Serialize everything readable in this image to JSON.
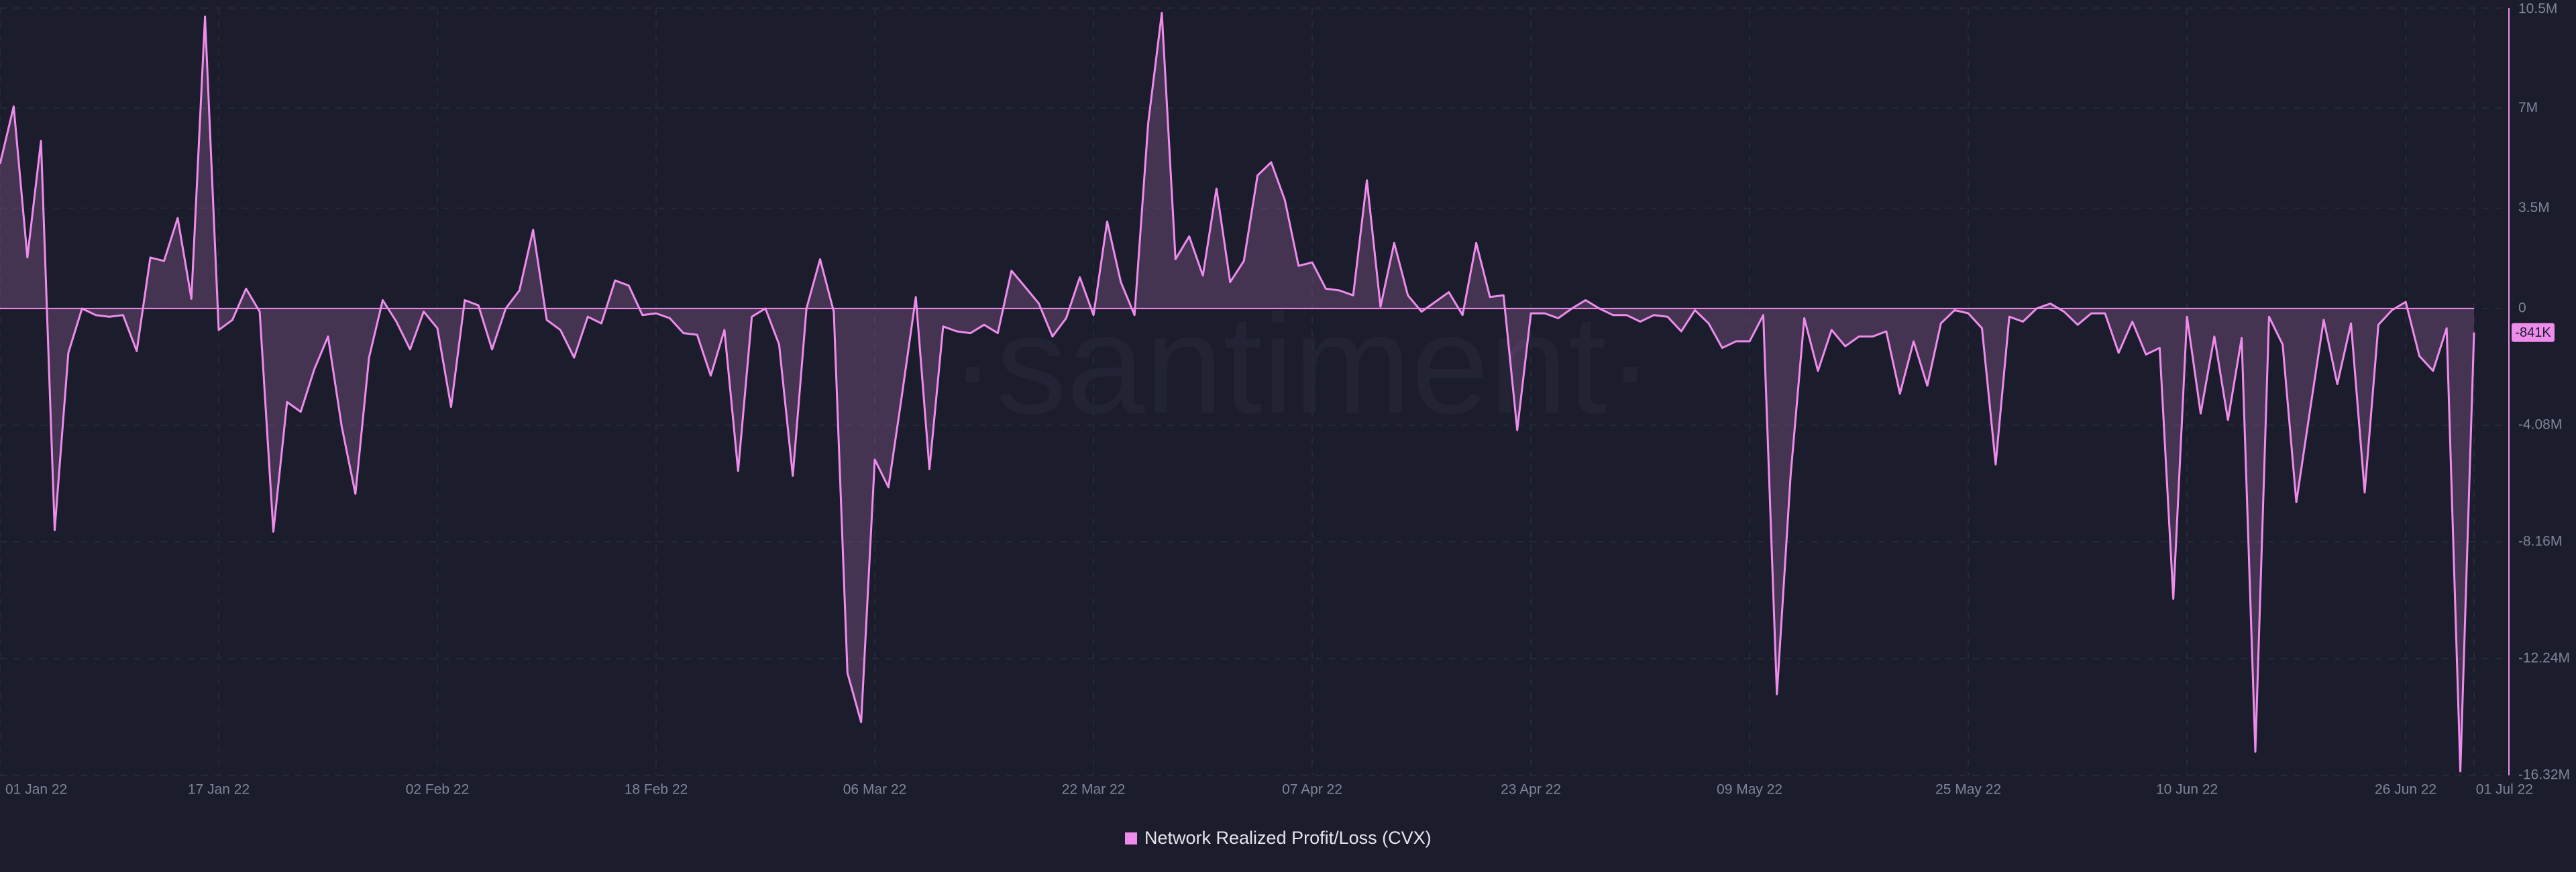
{
  "chart_data": {
    "type": "area",
    "watermark": "·santiment·",
    "x": [
      "2022-01-01",
      "2022-01-02",
      "2022-01-03",
      "2022-01-04",
      "2022-01-05",
      "2022-01-06",
      "2022-01-07",
      "2022-01-08",
      "2022-01-09",
      "2022-01-10",
      "2022-01-11",
      "2022-01-12",
      "2022-01-13",
      "2022-01-14",
      "2022-01-15",
      "2022-01-16",
      "2022-01-17",
      "2022-01-18",
      "2022-01-19",
      "2022-01-20",
      "2022-01-21",
      "2022-01-22",
      "2022-01-23",
      "2022-01-24",
      "2022-01-25",
      "2022-01-26",
      "2022-01-27",
      "2022-01-28",
      "2022-01-29",
      "2022-01-30",
      "2022-01-31",
      "2022-02-01",
      "2022-02-02",
      "2022-02-03",
      "2022-02-04",
      "2022-02-05",
      "2022-02-06",
      "2022-02-07",
      "2022-02-08",
      "2022-02-09",
      "2022-02-10",
      "2022-02-11",
      "2022-02-12",
      "2022-02-13",
      "2022-02-14",
      "2022-02-15",
      "2022-02-16",
      "2022-02-17",
      "2022-02-18",
      "2022-02-19",
      "2022-02-20",
      "2022-02-21",
      "2022-02-22",
      "2022-02-23",
      "2022-02-24",
      "2022-02-25",
      "2022-02-26",
      "2022-02-27",
      "2022-02-28",
      "2022-03-01",
      "2022-03-02",
      "2022-03-03",
      "2022-03-04",
      "2022-03-05",
      "2022-03-06",
      "2022-03-07",
      "2022-03-08",
      "2022-03-09",
      "2022-03-10",
      "2022-03-11",
      "2022-03-12",
      "2022-03-13",
      "2022-03-14",
      "2022-03-15",
      "2022-03-16",
      "2022-03-17",
      "2022-03-18",
      "2022-03-19",
      "2022-03-20",
      "2022-03-21",
      "2022-03-22",
      "2022-03-23",
      "2022-03-24",
      "2022-03-25",
      "2022-03-26",
      "2022-03-27",
      "2022-03-28",
      "2022-03-29",
      "2022-03-30",
      "2022-03-31",
      "2022-04-01",
      "2022-04-02",
      "2022-04-03",
      "2022-04-04",
      "2022-04-05",
      "2022-04-06",
      "2022-04-07",
      "2022-04-08",
      "2022-04-09",
      "2022-04-10",
      "2022-04-11",
      "2022-04-12",
      "2022-04-13",
      "2022-04-14",
      "2022-04-15",
      "2022-04-16",
      "2022-04-17",
      "2022-04-18",
      "2022-04-19",
      "2022-04-20",
      "2022-04-21",
      "2022-04-22",
      "2022-04-23",
      "2022-04-24",
      "2022-04-25",
      "2022-04-26",
      "2022-04-27",
      "2022-04-28",
      "2022-04-29",
      "2022-04-30",
      "2022-05-01",
      "2022-05-02",
      "2022-05-03",
      "2022-05-04",
      "2022-05-05",
      "2022-05-06",
      "2022-05-07",
      "2022-05-08",
      "2022-05-09",
      "2022-05-10",
      "2022-05-11",
      "2022-05-12",
      "2022-05-13",
      "2022-05-14",
      "2022-05-15",
      "2022-05-16",
      "2022-05-17",
      "2022-05-18",
      "2022-05-19",
      "2022-05-20",
      "2022-05-21",
      "2022-05-22",
      "2022-05-23",
      "2022-05-24",
      "2022-05-25",
      "2022-05-26",
      "2022-05-27",
      "2022-05-28",
      "2022-05-29",
      "2022-05-30",
      "2022-05-31",
      "2022-06-01",
      "2022-06-02",
      "2022-06-03",
      "2022-06-04",
      "2022-06-05",
      "2022-06-06",
      "2022-06-07",
      "2022-06-08",
      "2022-06-09",
      "2022-06-10",
      "2022-06-11",
      "2022-06-12",
      "2022-06-13",
      "2022-06-14",
      "2022-06-15",
      "2022-06-16",
      "2022-06-17",
      "2022-06-18",
      "2022-06-19",
      "2022-06-20",
      "2022-06-21",
      "2022-06-22",
      "2022-06-23",
      "2022-06-24",
      "2022-06-25",
      "2022-06-26",
      "2022-06-27",
      "2022-06-28",
      "2022-06-29",
      "2022-06-30",
      "2022-07-01"
    ],
    "series": [
      {
        "name": "Network Realized Profit/Loss (CVX)",
        "color": "#ee8cec",
        "values": [
          5.05,
          7.06,
          1.78,
          5.85,
          -7.75,
          -1.55,
          0,
          -0.23,
          -0.29,
          -0.23,
          -1.49,
          1.78,
          1.66,
          3.16,
          0.34,
          10.2,
          -0.75,
          -0.4,
          0.69,
          -0.11,
          -7.8,
          -3.27,
          -3.61,
          -2.12,
          -0.98,
          -4.13,
          -6.48,
          -1.72,
          0.29,
          -0.46,
          -1.43,
          -0.11,
          -0.69,
          -3.44,
          0.29,
          0.11,
          -1.43,
          0,
          0.63,
          2.75,
          -0.4,
          -0.75,
          -1.72,
          -0.29,
          -0.52,
          0.98,
          0.8,
          -0.23,
          -0.17,
          -0.34,
          -0.86,
          -0.92,
          -2.35,
          -0.75,
          -5.68,
          -0.29,
          0,
          -1.26,
          -5.85,
          0,
          1.72,
          -0.11,
          -12.74,
          -14.46,
          -5.28,
          -6.25,
          -2.98,
          0.4,
          -5.62,
          -0.63,
          -0.8,
          -0.86,
          -0.57,
          -0.86,
          1.32,
          0.75,
          0.17,
          -0.98,
          -0.34,
          1.09,
          -0.23,
          3.04,
          0.92,
          -0.23,
          6.48,
          10.33,
          1.72,
          2.52,
          1.15,
          4.19,
          0.92,
          1.66,
          4.65,
          5.11,
          3.79,
          1.49,
          1.61,
          0.69,
          0.63,
          0.46,
          4.48,
          0.06,
          2.29,
          0.46,
          -0.11,
          0.23,
          0.57,
          -0.23,
          2.29,
          0.4,
          0.46,
          -4.25,
          -0.17,
          -0.17,
          -0.34,
          0,
          0.29,
          0,
          -0.23,
          -0.23,
          -0.46,
          -0.23,
          -0.29,
          -0.8,
          -0.06,
          -0.52,
          -1.38,
          -1.15,
          -1.15,
          -0.23,
          -13.48,
          -5.85,
          -0.34,
          -2.18,
          -0.75,
          -1.32,
          -0.98,
          -0.98,
          -0.8,
          -2.98,
          -1.15,
          -2.7,
          -0.52,
          -0.06,
          -0.17,
          -0.69,
          -5.45,
          -0.29,
          -0.46,
          0,
          0.17,
          -0.11,
          -0.57,
          -0.17,
          -0.17,
          -1.55,
          -0.46,
          -1.61,
          -1.38,
          -10.15,
          -0.29,
          -3.67,
          -0.98,
          -3.9,
          -1.03,
          -15.49,
          -0.29,
          -1.26,
          -6.77,
          -3.56,
          -0.4,
          -2.64,
          -0.52,
          -6.43,
          -0.57,
          -0.06,
          0.23,
          -1.66,
          -2.18,
          -0.69,
          -16.18,
          -0.841
        ]
      }
    ],
    "last_value": {
      "value": -0.841,
      "label": "-841K"
    },
    "xlim": [
      "2022-01-01",
      "2022-07-01"
    ],
    "xticks": [
      {
        "value": "2022-01-01",
        "label": "01 Jan 22"
      },
      {
        "value": "2022-01-17",
        "label": "17 Jan 22"
      },
      {
        "value": "2022-02-02",
        "label": "02 Feb 22"
      },
      {
        "value": "2022-02-18",
        "label": "18 Feb 22"
      },
      {
        "value": "2022-03-06",
        "label": "06 Mar 22"
      },
      {
        "value": "2022-03-22",
        "label": "22 Mar 22"
      },
      {
        "value": "2022-04-07",
        "label": "07 Apr 22"
      },
      {
        "value": "2022-04-23",
        "label": "23 Apr 22"
      },
      {
        "value": "2022-05-09",
        "label": "09 May 22"
      },
      {
        "value": "2022-05-25",
        "label": "25 May 22"
      },
      {
        "value": "2022-06-10",
        "label": "10 Jun 22"
      },
      {
        "value": "2022-06-26",
        "label": "26 Jun 22"
      },
      {
        "value": "2022-07-01",
        "label": "01 Jul 22"
      }
    ],
    "ylim": [
      -16.32,
      10.5
    ],
    "yticks": [
      {
        "value": 10.5,
        "label": "10.5M"
      },
      {
        "value": 7,
        "label": "7M"
      },
      {
        "value": 3.5,
        "label": "3.5M"
      },
      0,
      {
        "value": -4.08,
        "label": "-4.08M"
      },
      {
        "value": -8.16,
        "label": "-8.16M"
      },
      {
        "value": -12.24,
        "label": "-12.24M"
      },
      {
        "value": -16.32,
        "label": "-16.32M"
      }
    ],
    "grid": true,
    "legend": "bottom"
  }
}
